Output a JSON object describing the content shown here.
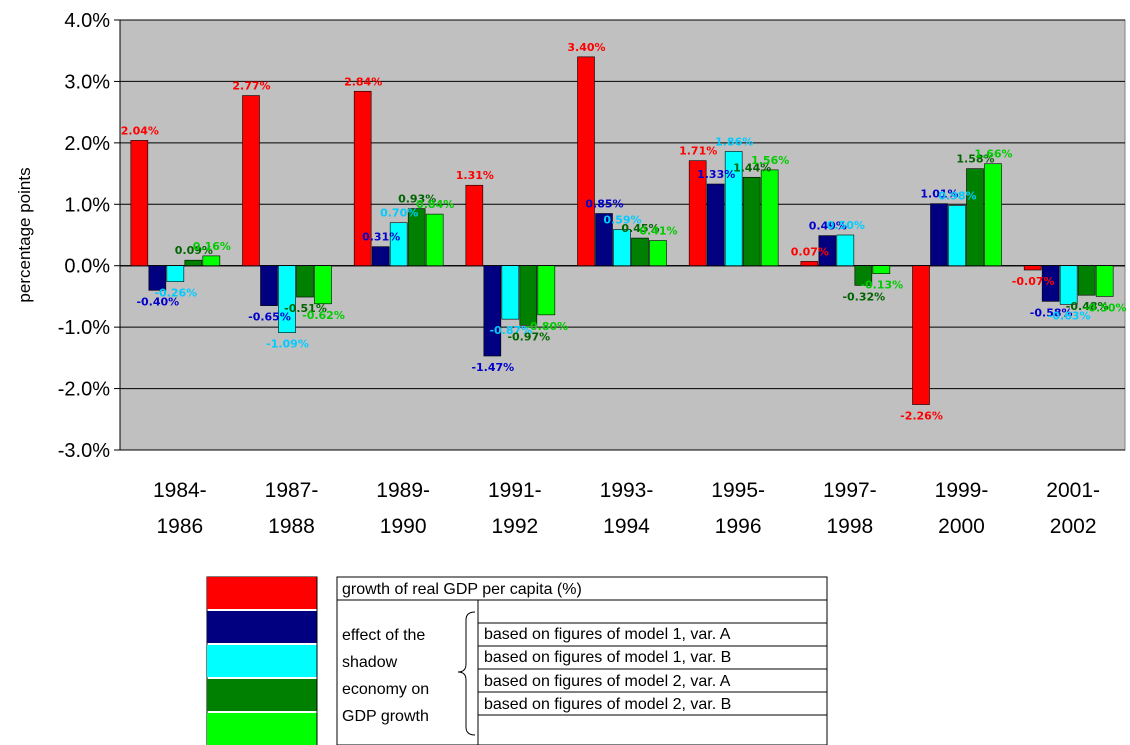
{
  "chart_data": {
    "type": "bar",
    "ylabel": "percentage points",
    "ylim": [
      -3.0,
      4.0
    ],
    "yticks": [
      "4.0%",
      "3.0%",
      "2.0%",
      "1.0%",
      "0.0%",
      "-1.0%",
      "-2.0%",
      "-3.0%"
    ],
    "grid": true,
    "background": "#c0c0c0",
    "categories": [
      [
        "1984-",
        "1986"
      ],
      [
        "1987-",
        "1988"
      ],
      [
        "1989-",
        "1990"
      ],
      [
        "1991-",
        "1992"
      ],
      [
        "1993-",
        "1994"
      ],
      [
        "1995-",
        "1996"
      ],
      [
        "1997-",
        "1998"
      ],
      [
        "1999-",
        "2000"
      ],
      [
        "2001-",
        "2002"
      ]
    ],
    "series": [
      {
        "key": "gdp",
        "color": "#ff0000",
        "label_color": "#ff0000",
        "values": [
          2.04,
          2.77,
          2.84,
          1.31,
          3.4,
          1.71,
          0.07,
          -2.26,
          -0.07
        ],
        "labels": [
          "2.04%",
          "2.77%",
          "2.84%",
          "1.31%",
          "3.40%",
          "1.71%",
          "0.07%",
          "-2.26%",
          "-0.07%"
        ]
      },
      {
        "key": "m1a",
        "color": "#000080",
        "label_color": "#0000cc",
        "values": [
          -0.4,
          -0.65,
          0.31,
          -1.47,
          0.85,
          1.33,
          0.49,
          1.01,
          -0.58
        ],
        "labels": [
          "-0.40%",
          "-0.65%",
          "0.31%",
          "-1.47%",
          "0.85%",
          "1.33%",
          "0.49%",
          "1.01%",
          "-0.58%"
        ]
      },
      {
        "key": "m1b",
        "color": "#00ffff",
        "label_color": "#00ccff",
        "values": [
          -0.26,
          -1.09,
          0.7,
          -0.87,
          0.59,
          1.86,
          0.5,
          0.98,
          -0.63
        ],
        "labels": [
          "-0.26%",
          "-1.09%",
          "0.70%",
          "-0.87%",
          "0.59%",
          "1.86%",
          "0.50%",
          "0.98%",
          "-0.63%"
        ]
      },
      {
        "key": "m2a",
        "color": "#008000",
        "label_color": "#006400",
        "values": [
          0.09,
          -0.51,
          0.93,
          -0.97,
          0.45,
          1.44,
          -0.32,
          1.58,
          -0.48
        ],
        "labels": [
          "0.09%",
          "-0.51%",
          "0.93%",
          "-0.97%",
          "0.45%",
          "1.44%",
          "-0.32%",
          "1.58%",
          "-0.48%"
        ]
      },
      {
        "key": "m2b",
        "color": "#00ff00",
        "label_color": "#00cc00",
        "values": [
          0.16,
          -0.62,
          0.84,
          -0.8,
          0.41,
          1.56,
          -0.13,
          1.66,
          -0.5
        ],
        "labels": [
          "0.16%",
          "-0.62%",
          "0.84%",
          "-0.80%",
          "0.41%",
          "1.56%",
          "-0.13%",
          "1.66%",
          "-0.50%"
        ]
      }
    ]
  },
  "legend": {
    "gdp": "growth of real GDP per capita (%)",
    "group_label": [
      "effect of the",
      "shadow",
      "economy on",
      "GDP growth"
    ],
    "m1a": "based on figures of model 1, var. A",
    "m1b": "based on figures of model 1, var. B",
    "m2a": "based on figures of model 2, var. A",
    "m2b": "based on figures of model 2, var. B"
  }
}
